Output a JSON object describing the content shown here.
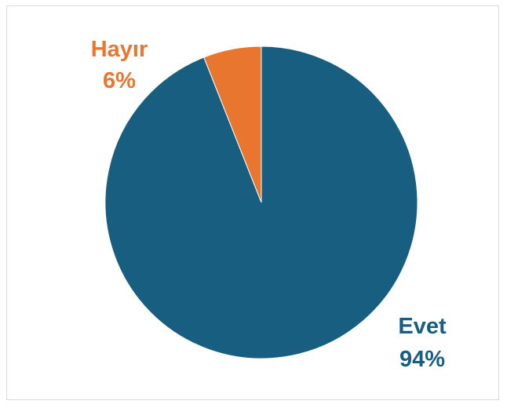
{
  "chart_data": {
    "type": "pie",
    "categories": [
      "Evet",
      "Hayır"
    ],
    "values": [
      94,
      6
    ],
    "labels": [
      {
        "name": "Evet",
        "percent": "94%"
      },
      {
        "name": "Hayır",
        "percent": "6%"
      }
    ],
    "colors": [
      "#175e80",
      "#e8762f"
    ],
    "label_colors": [
      "#175e80",
      "#e8762f"
    ],
    "legend": "none",
    "title": ""
  }
}
